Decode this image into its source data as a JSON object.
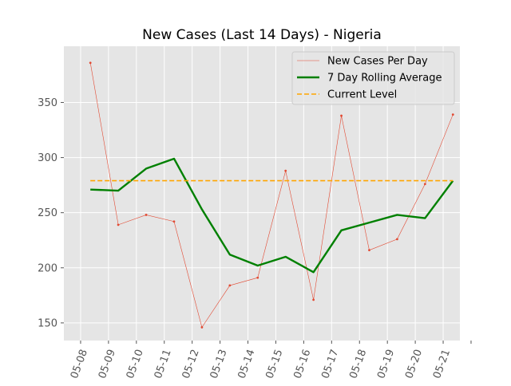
{
  "chart_data": {
    "type": "line",
    "title": "New Cases (Last 14 Days) - Nigeria",
    "xlabel": "",
    "ylabel": "",
    "x_tick_labels": [
      "05-08",
      "05-09",
      "05-10",
      "05-11",
      "05-12",
      "05-13",
      "05-14",
      "05-15",
      "05-16",
      "05-17",
      "05-18",
      "05-19",
      "05-20",
      "05-21"
    ],
    "y_ticks": [
      150,
      200,
      250,
      300,
      350
    ],
    "ylim": [
      134,
      401
    ],
    "grid": true,
    "legend_position": "upper right",
    "x": [
      "05-08",
      "05-09",
      "05-10",
      "05-11",
      "05-12",
      "05-13",
      "05-14",
      "05-15",
      "05-16",
      "05-17",
      "05-18",
      "05-19",
      "05-20",
      "05-21"
    ],
    "series": [
      {
        "name": "New Cases Per Day",
        "style": "thin-line-with-markers",
        "color": "#E24A33",
        "values": [
          386,
          239,
          248,
          242,
          146,
          184,
          191,
          288,
          171,
          338,
          216,
          226,
          276,
          339
        ]
      },
      {
        "name": "7 Day Rolling Average",
        "style": "thick-line",
        "color": "#008000",
        "values": [
          271,
          270,
          290,
          299,
          253,
          212,
          202,
          210,
          196,
          234,
          241,
          248,
          245,
          279
        ]
      },
      {
        "name": "Current Level",
        "style": "dashed-line",
        "color": "#FFA500",
        "values": [
          279,
          279,
          279,
          279,
          279,
          279,
          279,
          279,
          279,
          279,
          279,
          279,
          279,
          279
        ]
      }
    ]
  },
  "colors": {
    "plot_background": "#E5E5E5",
    "grid": "#FFFFFF",
    "axis_text": "#555555",
    "title_text": "#000000"
  }
}
